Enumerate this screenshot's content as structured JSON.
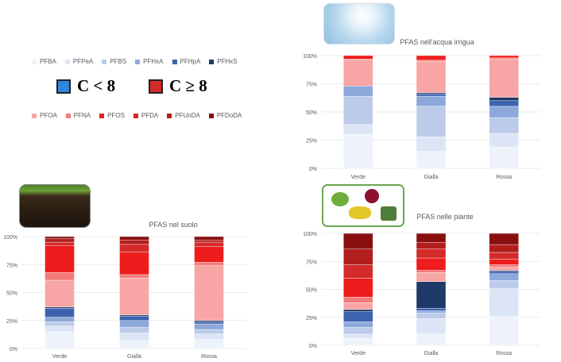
{
  "legend_row1": [
    {
      "label": "PFBA",
      "color": "#eef3fb"
    },
    {
      "label": "PFPeA",
      "color": "#dbe5f5"
    },
    {
      "label": "PFBS",
      "color": "#bccbea"
    },
    {
      "label": "PFHxA",
      "color": "#8da8db"
    },
    {
      "label": "PFHpA",
      "color": "#3d63b0"
    },
    {
      "label": "PFHxS",
      "color": "#1f3968"
    }
  ],
  "legend_row2": [
    {
      "label": "PFOA",
      "color": "#f8a5a5"
    },
    {
      "label": "PFNA",
      "color": "#f47a7a"
    },
    {
      "label": "PFOS",
      "color": "#ee1c1c"
    },
    {
      "label": "PFDA",
      "color": "#d42a2a"
    },
    {
      "label": "PFUnDA",
      "color": "#b21d1d"
    },
    {
      "label": "PFDoDA",
      "color": "#8a1010"
    }
  ],
  "conditions": {
    "low": {
      "label": "C < 8",
      "color": "#2e86de"
    },
    "high": {
      "label": "C ≥ 8",
      "color": "#d42a2a"
    }
  },
  "chart_data": [
    {
      "type": "bar",
      "stacked": true,
      "title": "PFAS nell'acqua irrigua",
      "categories": [
        "Verde",
        "Gialla",
        "Rossa"
      ],
      "y_ticks": [
        "0%",
        "25%",
        "50%",
        "75%",
        "100%"
      ],
      "ylim": [
        0,
        100
      ],
      "series": [
        {
          "name": "PFBA",
          "values": [
            30,
            15,
            19
          ]
        },
        {
          "name": "PFPeA",
          "values": [
            9,
            13,
            12
          ]
        },
        {
          "name": "PFBS",
          "values": [
            25,
            27,
            14
          ]
        },
        {
          "name": "PFHxA",
          "values": [
            9,
            9,
            10
          ]
        },
        {
          "name": "PFHpA",
          "values": [
            0,
            2,
            5
          ]
        },
        {
          "name": "PFHxS",
          "values": [
            0,
            1,
            3
          ]
        },
        {
          "name": "PFOA",
          "values": [
            23,
            28,
            34
          ]
        },
        {
          "name": "PFNA",
          "values": [
            1,
            1,
            1
          ]
        },
        {
          "name": "PFOS",
          "values": [
            3,
            4,
            2
          ]
        },
        {
          "name": "PFDA",
          "values": [
            0,
            0,
            0
          ]
        },
        {
          "name": "PFUnDA",
          "values": [
            0,
            0,
            0
          ]
        },
        {
          "name": "PFDoDA",
          "values": [
            0,
            0,
            0
          ]
        }
      ]
    },
    {
      "type": "bar",
      "stacked": true,
      "title": "PFAS nel suolo",
      "categories": [
        "Verde",
        "Gialla",
        "Rossa"
      ],
      "y_ticks": [
        "0%",
        "25%",
        "50%",
        "75%",
        "100%"
      ],
      "ylim": [
        0,
        100
      ],
      "series": [
        {
          "name": "PFBA",
          "values": [
            15,
            7,
            8
          ]
        },
        {
          "name": "PFPeA",
          "values": [
            5,
            7,
            5
          ]
        },
        {
          "name": "PFBS",
          "values": [
            4,
            5,
            4
          ]
        },
        {
          "name": "PFHxA",
          "values": [
            4,
            6,
            5
          ]
        },
        {
          "name": "PFHpA",
          "values": [
            8,
            4,
            2
          ]
        },
        {
          "name": "PFHxS",
          "values": [
            1,
            1,
            1
          ]
        },
        {
          "name": "PFOA",
          "values": [
            24,
            33,
            49
          ]
        },
        {
          "name": "PFNA",
          "values": [
            7,
            3,
            3
          ]
        },
        {
          "name": "PFOS",
          "values": [
            24,
            20,
            14
          ]
        },
        {
          "name": "PFDA",
          "values": [
            3,
            7,
            4
          ]
        },
        {
          "name": "PFUnDA",
          "values": [
            3,
            4,
            2
          ]
        },
        {
          "name": "PFDoDA",
          "values": [
            2,
            3,
            3
          ]
        }
      ]
    },
    {
      "type": "bar",
      "stacked": true,
      "title": "PFAS nelle piante",
      "categories": [
        "Verde",
        "Gialla",
        "Rossa"
      ],
      "y_ticks": [
        "0%",
        "25%",
        "50%",
        "75%",
        "100%"
      ],
      "ylim": [
        0,
        100
      ],
      "series": [
        {
          "name": "PFBA",
          "values": [
            6,
            10,
            26
          ]
        },
        {
          "name": "PFPeA",
          "values": [
            4,
            14,
            25
          ]
        },
        {
          "name": "PFBS",
          "values": [
            6,
            5,
            7
          ]
        },
        {
          "name": "PFHxA",
          "values": [
            5,
            2,
            6
          ]
        },
        {
          "name": "PFHpA",
          "values": [
            9,
            2,
            2
          ]
        },
        {
          "name": "PFHxS",
          "values": [
            2,
            24,
            1
          ]
        },
        {
          "name": "PFOA",
          "values": [
            6,
            8,
            3
          ]
        },
        {
          "name": "PFNA",
          "values": [
            5,
            2,
            2
          ]
        },
        {
          "name": "PFOS",
          "values": [
            17,
            11,
            5
          ]
        },
        {
          "name": "PFDA",
          "values": [
            12,
            8,
            6
          ]
        },
        {
          "name": "PFUnDA",
          "values": [
            14,
            6,
            7
          ]
        },
        {
          "name": "PFDoDA",
          "values": [
            14,
            8,
            10
          ]
        }
      ]
    }
  ]
}
